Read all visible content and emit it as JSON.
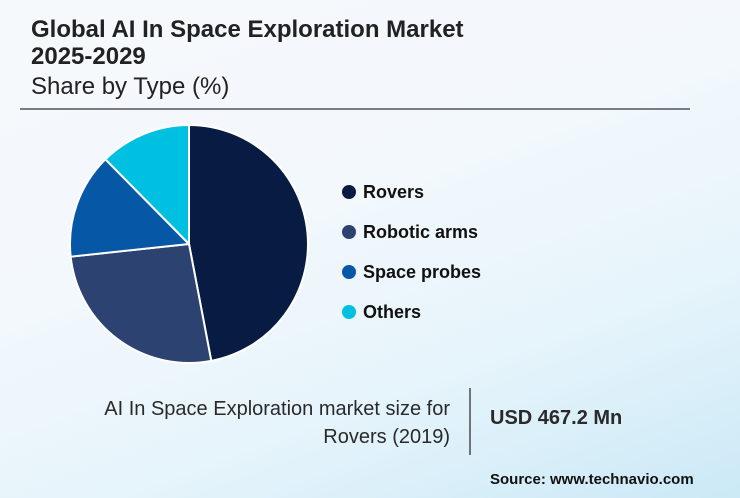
{
  "header": {
    "title_line1": "Global AI In Space Exploration Market",
    "title_line2": "2025-2029",
    "subtitle": "Share by Type (%)"
  },
  "legend": {
    "items": [
      {
        "label": "Rovers",
        "color": "#081c43"
      },
      {
        "label": "Robotic arms",
        "color": "#2c4270"
      },
      {
        "label": "Space probes",
        "color": "#0657a6"
      },
      {
        "label": "Others",
        "color": "#00c0e2"
      }
    ]
  },
  "stat": {
    "label_line1": "AI In Space Exploration market size for",
    "label_line2": "Rovers (2019)",
    "value": "USD 467.2 Mn"
  },
  "footer": {
    "source": "Source: www.technavio.com"
  },
  "chart_data": {
    "type": "pie",
    "title": "Global AI In Space Exploration Market 2025-2029",
    "subtitle": "Share by Type (%)",
    "categories": [
      "Rovers",
      "Robotic arms",
      "Space probes",
      "Others"
    ],
    "values": [
      47,
      26.3,
      14.3,
      12.4
    ],
    "colors": [
      "#081c43",
      "#2c4270",
      "#0657a6",
      "#00c0e2"
    ],
    "start_angle": "12 o'clock, clockwise",
    "legend_position": "right",
    "data_labels": false,
    "annotation": "AI In Space Exploration market size for Rovers (2019): USD 467.2 Mn"
  }
}
